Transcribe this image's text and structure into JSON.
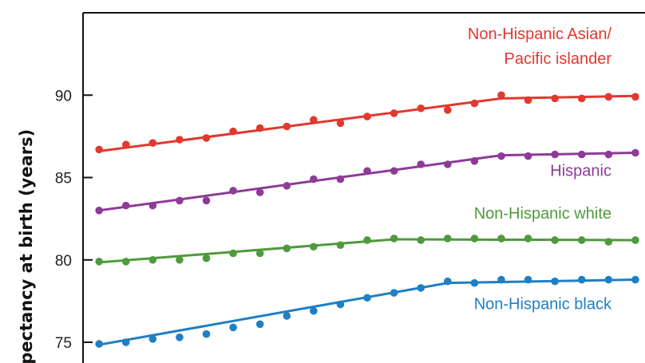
{
  "chart_data": {
    "type": "line",
    "title": "",
    "xlabel": "",
    "ylabel": "xpectancy at birth (years)",
    "ylim": [
      73.5,
      95
    ],
    "yticks": [
      75,
      80,
      85,
      90
    ],
    "xlim": [
      -0.6,
      20.3
    ],
    "grid": false,
    "x": [
      0,
      1,
      2,
      3,
      4,
      5,
      6,
      7,
      8,
      9,
      10,
      11,
      12,
      13,
      14,
      15,
      16,
      17,
      18,
      19,
      20
    ],
    "series": [
      {
        "name": "Non-Hispanic Asian/ Pacific islander",
        "label_lines": [
          "Non-Hispanic Asian/",
          "Pacific islander"
        ],
        "color": "#e2382f",
        "label_y": 93.4,
        "values": [
          86.7,
          87.0,
          87.1,
          87.3,
          87.4,
          87.8,
          88.0,
          88.1,
          88.5,
          88.3,
          88.7,
          88.9,
          89.2,
          89.1,
          89.5,
          90.0,
          89.7,
          89.8,
          89.8,
          89.9,
          89.9
        ],
        "fit": [
          [
            0,
            86.6
          ],
          [
            15,
            89.8
          ],
          [
            20,
            89.95
          ]
        ]
      },
      {
        "name": "Hispanic",
        "label_lines": [
          "Hispanic"
        ],
        "color": "#8e3b97",
        "label_y": 85.1,
        "values": [
          83.0,
          83.3,
          83.3,
          83.6,
          83.6,
          84.2,
          84.1,
          84.5,
          84.9,
          84.9,
          85.4,
          85.4,
          85.8,
          85.8,
          86.0,
          86.3,
          86.3,
          86.4,
          86.4,
          86.4,
          86.5
        ],
        "fit": [
          [
            0,
            83.0
          ],
          [
            15,
            86.35
          ],
          [
            20,
            86.5
          ]
        ]
      },
      {
        "name": "Non-Hispanic white",
        "label_lines": [
          "Non-Hispanic white"
        ],
        "color": "#4f9a3c",
        "label_y": 82.5,
        "values": [
          79.9,
          79.9,
          80.0,
          80.0,
          80.1,
          80.4,
          80.4,
          80.7,
          80.8,
          80.9,
          81.2,
          81.3,
          81.2,
          81.3,
          81.3,
          81.3,
          81.3,
          81.2,
          81.2,
          81.1,
          81.2
        ],
        "fit": [
          [
            0,
            79.85
          ],
          [
            11,
            81.25
          ],
          [
            20,
            81.2
          ]
        ]
      },
      {
        "name": "Non-Hispanic black",
        "label_lines": [
          "Non-Hispanic black"
        ],
        "color": "#1f7fc4",
        "label_y": 77.0,
        "values": [
          74.9,
          75.0,
          75.2,
          75.3,
          75.5,
          75.9,
          76.1,
          76.6,
          76.9,
          77.3,
          77.7,
          78.0,
          78.3,
          78.7,
          78.6,
          78.8,
          78.8,
          78.7,
          78.8,
          78.8,
          78.8
        ],
        "fit": [
          [
            0,
            74.85
          ],
          [
            13,
            78.6
          ],
          [
            20,
            78.8
          ]
        ]
      }
    ]
  }
}
